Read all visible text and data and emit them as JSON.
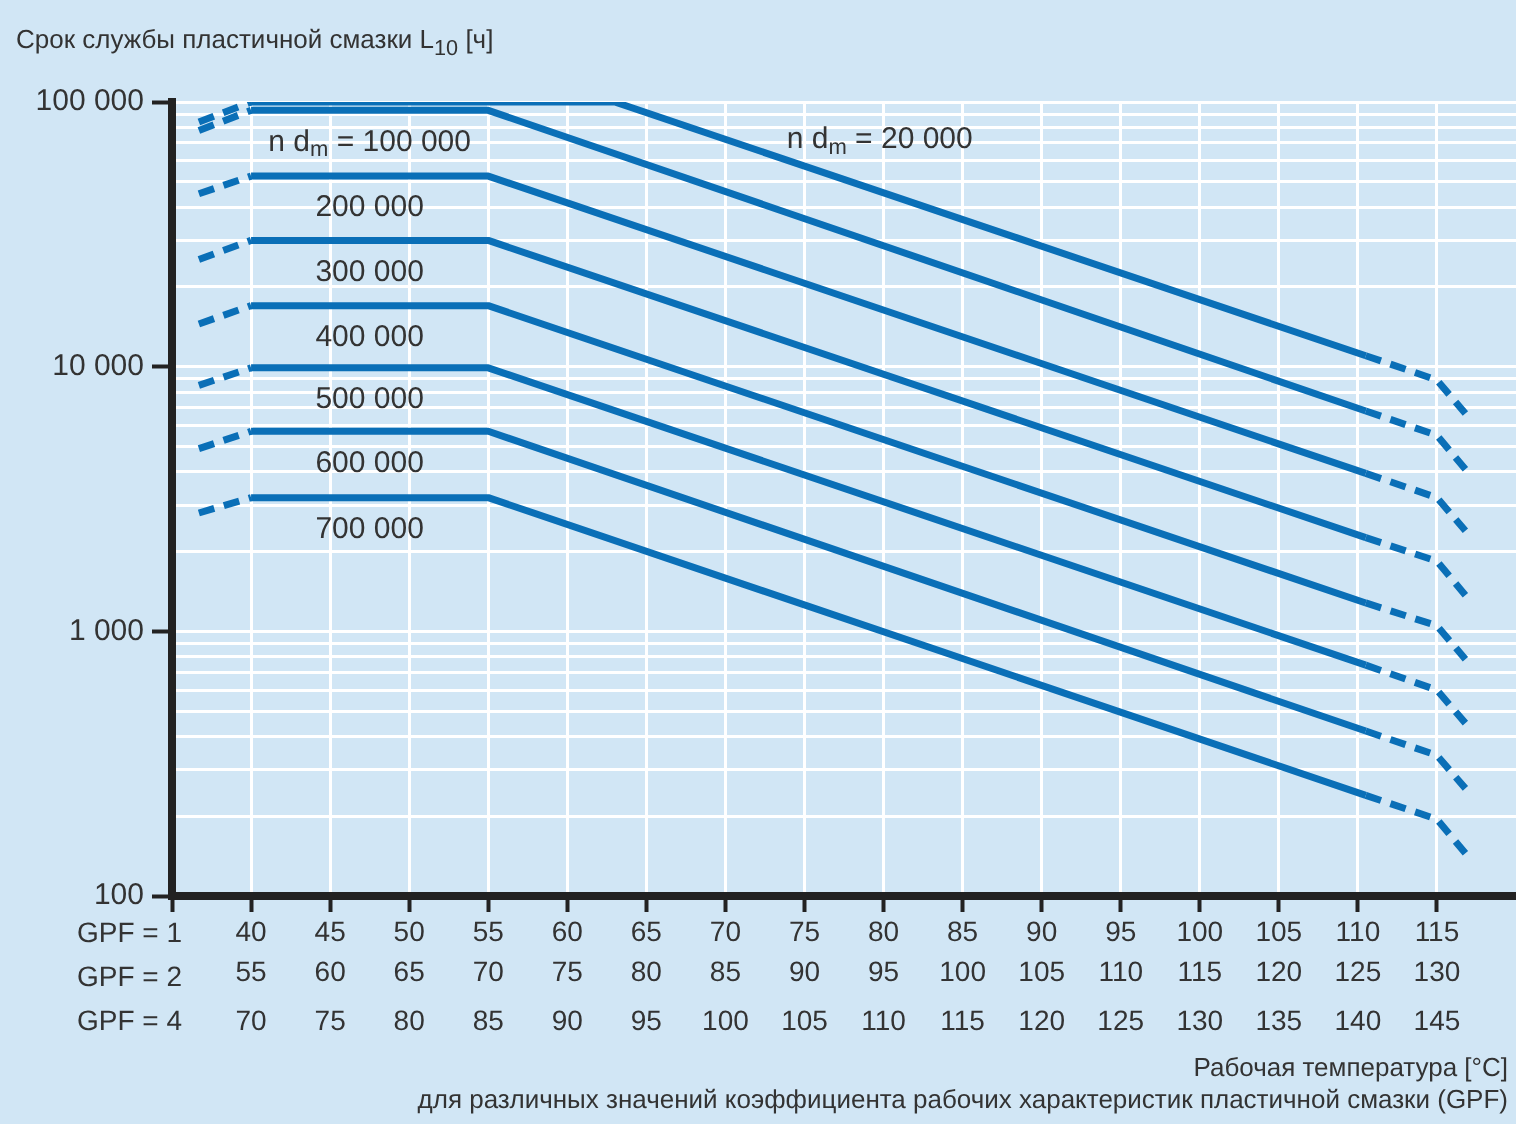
{
  "chart_data": {
    "type": "line",
    "title": "Срок службы пластичной смазки L$_{10}$ [ч]",
    "xlabel": "Рабочая температура [°C]\nдля различных значений коэффициента рабочих характеристик пластичной смазки (GPF)",
    "log": "y",
    "grid": true,
    "marker": "none",
    "line_style": "solid",
    "xlim": [
      35,
      120
    ],
    "xticks": [
      {
        "value": 35,
        "label": null
      },
      40,
      45,
      50,
      55,
      60,
      65,
      70,
      75,
      80,
      85,
      90,
      95,
      100,
      105,
      110,
      115
    ],
    "x2lim": [
      50,
      135
    ],
    "x2ticks": [
      {
        "value": 50,
        "label": null
      },
      55,
      60,
      65,
      70,
      75,
      80,
      85,
      90,
      95,
      100,
      105,
      110,
      115,
      120,
      125,
      130
    ],
    "annotations": [
      "GPF = 1",
      "GPF = 2",
      "GPF = 4",
      "70",
      "75",
      "80",
      "85",
      "90",
      "95",
      "100",
      "105",
      "110",
      "115",
      "120",
      "125",
      "130",
      "135",
      "140",
      "145"
    ],
    "ylim": [
      100,
      100000
    ],
    "yticks": [
      {
        "value": 100,
        "label": "100"
      },
      {
        "value": 200,
        "label": null
      },
      {
        "value": 300,
        "label": null
      },
      {
        "value": 400,
        "label": null
      },
      {
        "value": 500,
        "label": null
      },
      {
        "value": 600,
        "label": null
      },
      {
        "value": 700,
        "label": null
      },
      {
        "value": 800,
        "label": null
      },
      {
        "value": 900,
        "label": null
      },
      {
        "value": 1000,
        "label": "1 000"
      },
      {
        "value": 2000,
        "label": null
      },
      {
        "value": 3000,
        "label": null
      },
      {
        "value": 4000,
        "label": null
      },
      {
        "value": 5000,
        "label": null
      },
      {
        "value": 6000,
        "label": null
      },
      {
        "value": 7000,
        "label": null
      },
      {
        "value": 8000,
        "label": null
      },
      {
        "value": 9000,
        "label": null
      },
      {
        "value": 10000,
        "label": "10 000"
      },
      {
        "value": 20000,
        "label": null
      },
      {
        "value": 30000,
        "label": null
      },
      {
        "value": 40000,
        "label": null
      },
      {
        "value": 50000,
        "label": null
      },
      {
        "value": 60000,
        "label": null
      },
      {
        "value": 70000,
        "label": null
      },
      {
        "value": 80000,
        "label": null
      },
      {
        "value": 90000,
        "label": null
      },
      {
        "value": 100000,
        "label": "100 000"
      }
    ],
    "series": [
      {
        "name": "n d$_{m}$ = 20 000",
        "color": "#0a6fb7",
        "x": [
          40,
          63,
          110.5
        ],
        "values": [
          100000,
          100000,
          11000
        ]
      },
      {
        "color": "#0a6fb7",
        "x": [
          36.7,
          40
        ],
        "values": [
          84000,
          100000
        ],
        "line_style": "dashed"
      },
      {
        "color": "#0a6fb7",
        "x": [
          110.5,
          115,
          116.8
        ],
        "values": [
          11000,
          8900,
          6650
        ],
        "line_style": "dashed"
      },
      {
        "name": "n d$_{m}$ = 100 000",
        "color": "#0a6fb7",
        "x": [
          40,
          55,
          110.5
        ],
        "values": [
          93000,
          93000,
          6800
        ]
      },
      {
        "color": "#0a6fb7",
        "x": [
          36.7,
          40
        ],
        "values": [
          78000,
          93000
        ],
        "line_style": "dashed"
      },
      {
        "color": "#0a6fb7",
        "x": [
          110.5,
          115,
          116.8
        ],
        "values": [
          6800,
          5500,
          4100
        ],
        "line_style": "dashed"
      },
      {
        "name": "200 000",
        "color": "#0a6fb7",
        "x": [
          40,
          55,
          110.5
        ],
        "values": [
          52500,
          52500,
          3950
        ]
      },
      {
        "color": "#0a6fb7",
        "x": [
          36.7,
          40
        ],
        "values": [
          45000,
          52500
        ],
        "line_style": "dashed"
      },
      {
        "color": "#0a6fb7",
        "x": [
          110.5,
          115,
          116.8
        ],
        "values": [
          3950,
          3200,
          2400
        ],
        "line_style": "dashed"
      },
      {
        "name": "300 000",
        "color": "#0a6fb7",
        "x": [
          40,
          55,
          110.5
        ],
        "values": [
          30000,
          30000,
          2260
        ]
      },
      {
        "color": "#0a6fb7",
        "x": [
          36.7,
          40
        ],
        "values": [
          25400,
          30000
        ],
        "line_style": "dashed"
      },
      {
        "color": "#0a6fb7",
        "x": [
          110.5,
          115,
          116.8
        ],
        "values": [
          2260,
          1840,
          1370
        ],
        "line_style": "dashed"
      },
      {
        "name": "400 000",
        "color": "#0a6fb7",
        "x": [
          40,
          55,
          110.5
        ],
        "values": [
          17000,
          17000,
          1280
        ]
      },
      {
        "color": "#0a6fb7",
        "x": [
          36.7,
          40
        ],
        "values": [
          14500,
          17000
        ],
        "line_style": "dashed"
      },
      {
        "color": "#0a6fb7",
        "x": [
          110.5,
          115,
          116.8
        ],
        "values": [
          1280,
          1050,
          785
        ],
        "line_style": "dashed"
      },
      {
        "name": "500 000",
        "color": "#0a6fb7",
        "x": [
          40,
          55,
          110.5
        ],
        "values": [
          9900,
          9900,
          745
        ]
      },
      {
        "color": "#0a6fb7",
        "x": [
          36.7,
          40
        ],
        "values": [
          8500,
          9900
        ],
        "line_style": "dashed"
      },
      {
        "color": "#0a6fb7",
        "x": [
          110.5,
          115,
          116.8
        ],
        "values": [
          745,
          600,
          450
        ],
        "line_style": "dashed"
      },
      {
        "name": "600 000",
        "color": "#0a6fb7",
        "x": [
          40,
          55,
          110.5
        ],
        "values": [
          5700,
          5700,
          420
        ]
      },
      {
        "color": "#0a6fb7",
        "x": [
          36.7,
          40
        ],
        "values": [
          4900,
          5700
        ],
        "line_style": "dashed"
      },
      {
        "color": "#0a6fb7",
        "x": [
          110.5,
          115,
          116.8
        ],
        "values": [
          420,
          340,
          255
        ],
        "line_style": "dashed"
      },
      {
        "name": "700 000",
        "color": "#0a6fb7",
        "x": [
          40,
          55,
          110.5
        ],
        "values": [
          3200,
          3200,
          240
        ]
      },
      {
        "color": "#0a6fb7",
        "x": [
          36.7,
          40
        ],
        "values": [
          2800,
          3200
        ],
        "line_style": "dashed"
      },
      {
        "color": "#0a6fb7",
        "x": [
          110.5,
          115,
          116.8
        ],
        "values": [
          240,
          195,
          145
        ],
        "line_style": "dashed"
      }
    ]
  }
}
